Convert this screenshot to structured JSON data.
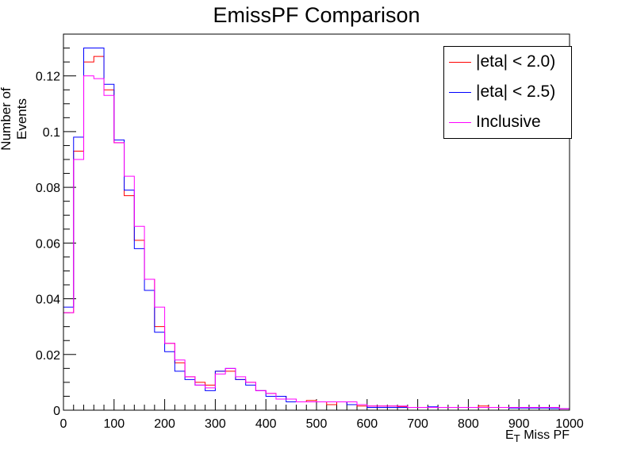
{
  "chart_data": {
    "type": "histogram",
    "title": "EmissPF Comparison",
    "xlabel_main": "E",
    "xlabel_sub": "T",
    "xlabel_rest": " Miss PF",
    "ylabel": "Number of Events",
    "xlim": [
      0,
      1000
    ],
    "ylim": [
      0,
      0.135
    ],
    "xticks": [
      "0",
      "100",
      "200",
      "300",
      "400",
      "500",
      "600",
      "700",
      "800",
      "900",
      "1000"
    ],
    "yticks": [
      "0",
      "0.02",
      "0.04",
      "0.06",
      "0.08",
      "0.1",
      "0.12"
    ],
    "bin_width": 20,
    "legend_position": "top-right",
    "series": [
      {
        "name": "|eta| < 2.0)",
        "color": "#ff0000",
        "values": [
          0.035,
          0.093,
          0.125,
          0.127,
          0.115,
          0.096,
          0.077,
          0.061,
          0.047,
          0.03,
          0.024,
          0.017,
          0.012,
          0.01,
          0.009,
          0.014,
          0.014,
          0.011,
          0.01,
          0.007,
          0.006,
          0.005,
          0.004,
          0.003,
          0.0035,
          0.003,
          0.002,
          0.003,
          0.002,
          0.0015,
          0.0015,
          0.0015,
          0.0015,
          0.0012,
          0.001,
          0.001,
          0.001,
          0.001,
          0.001,
          0.001,
          0.001,
          0.0015,
          0.001,
          0.001,
          0.001,
          0.001,
          0.001,
          0.001,
          0.001,
          0.0005
        ]
      },
      {
        "name": "|eta| < 2.5)",
        "color": "#0000ff",
        "values": [
          0.037,
          0.098,
          0.13,
          0.13,
          0.117,
          0.097,
          0.079,
          0.058,
          0.043,
          0.028,
          0.021,
          0.014,
          0.011,
          0.009,
          0.007,
          0.014,
          0.015,
          0.011,
          0.009,
          0.007,
          0.005,
          0.005,
          0.003,
          0.003,
          0.003,
          0.003,
          0.003,
          0.003,
          0.002,
          0.002,
          0.001,
          0.001,
          0.001,
          0.001,
          0.001,
          0.001,
          0.0012,
          0.001,
          0.001,
          0.001,
          0.001,
          0.001,
          0.001,
          0.001,
          0.0008,
          0.0008,
          0.0008,
          0.0008,
          0.0006,
          0.0005
        ]
      },
      {
        "name": "Inclusive",
        "color": "#ff00ff",
        "values": [
          0.035,
          0.09,
          0.12,
          0.119,
          0.113,
          0.096,
          0.084,
          0.066,
          0.047,
          0.037,
          0.024,
          0.018,
          0.012,
          0.009,
          0.008,
          0.013,
          0.015,
          0.012,
          0.01,
          0.007,
          0.006,
          0.004,
          0.004,
          0.003,
          0.003,
          0.003,
          0.003,
          0.003,
          0.003,
          0.002,
          0.0015,
          0.0015,
          0.0015,
          0.0015,
          0.001,
          0.001,
          0.001,
          0.001,
          0.001,
          0.001,
          0.001,
          0.001,
          0.001,
          0.001,
          0.001,
          0.001,
          0.001,
          0.001,
          0.001,
          0.0005
        ]
      }
    ]
  }
}
